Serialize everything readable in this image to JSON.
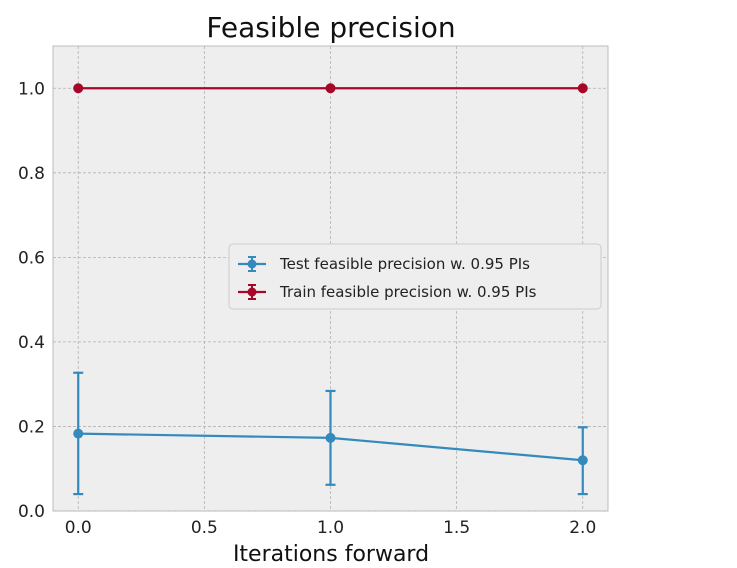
{
  "chart_data": {
    "type": "line",
    "title": "Feasible precision",
    "xlabel": "Iterations forward",
    "ylabel": "",
    "xlim": [
      -0.1,
      2.1
    ],
    "ylim": [
      0.0,
      1.1
    ],
    "xticks": [
      0.0,
      0.5,
      1.0,
      1.5,
      2.0
    ],
    "xtick_labels": [
      "0.0",
      "0.5",
      "1.0",
      "1.5",
      "2.0"
    ],
    "yticks": [
      0.0,
      0.2,
      0.4,
      0.6,
      0.8,
      1.0
    ],
    "ytick_labels": [
      "0.0",
      "0.2",
      "0.4",
      "0.6",
      "0.8",
      "1.0"
    ],
    "grid": true,
    "legend_position": "center-right",
    "series": [
      {
        "name": "Test feasible precision w. 0.95 PIs",
        "color": "#348abd",
        "x": [
          0.0,
          1.0,
          2.0
        ],
        "y": [
          0.183,
          0.173,
          0.12
        ],
        "lower": [
          0.04,
          0.062,
          0.04
        ],
        "upper": [
          0.327,
          0.284,
          0.198
        ]
      },
      {
        "name": "Train feasible precision w. 0.95 PIs",
        "color": "#a60628",
        "x": [
          0.0,
          1.0,
          2.0
        ],
        "y": [
          1.0,
          1.0,
          1.0
        ],
        "lower": [
          1.0,
          1.0,
          1.0
        ],
        "upper": [
          1.0,
          1.0,
          1.0
        ]
      }
    ]
  },
  "colors": {
    "plot_background": "#eeeeee",
    "grid": "#b2b2b2"
  }
}
